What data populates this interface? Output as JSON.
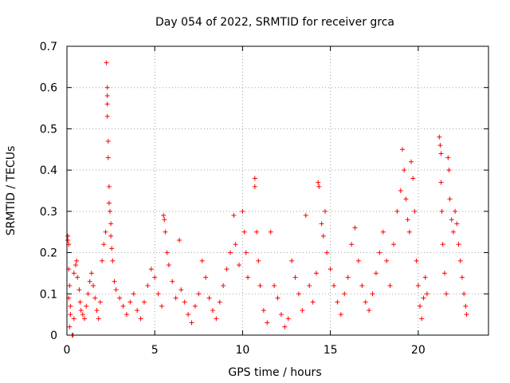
{
  "chart_data": {
    "type": "scatter",
    "title": "Day 054 of 2022, SRMTID for receiver grca",
    "xlabel": "GPS time / hours",
    "ylabel": "SRMTID / TECUs",
    "xlim": [
      0,
      24
    ],
    "ylim": [
      0,
      0.7
    ],
    "xticks": [
      0,
      5,
      10,
      15,
      20
    ],
    "xtick_labels": [
      "0",
      "5",
      "10",
      "15",
      "20"
    ],
    "yticks": [
      0,
      0.1,
      0.2,
      0.3,
      0.4,
      0.5,
      0.6,
      0.7
    ],
    "ytick_labels": [
      "0",
      "0.1",
      "0.2",
      "0.3",
      "0.4",
      "0.5",
      "0.6",
      "0.7"
    ],
    "grid": true,
    "marker": "+",
    "color": "#ff0000",
    "series": [
      {
        "name": "SRMTID",
        "points": [
          [
            0.05,
            0.24
          ],
          [
            0.05,
            0.23
          ],
          [
            0.1,
            0.22
          ],
          [
            0.1,
            0.16
          ],
          [
            0.15,
            0.12
          ],
          [
            0.1,
            0.09
          ],
          [
            0.2,
            0.07
          ],
          [
            0.2,
            0.05
          ],
          [
            0.15,
            0.02
          ],
          [
            0.3,
            0.0
          ],
          [
            0.35,
            0.0
          ],
          [
            0.4,
            0.04
          ],
          [
            0.4,
            0.15
          ],
          [
            0.5,
            0.17
          ],
          [
            0.55,
            0.18
          ],
          [
            0.6,
            0.14
          ],
          [
            0.7,
            0.11
          ],
          [
            0.75,
            0.08
          ],
          [
            0.8,
            0.06
          ],
          [
            0.9,
            0.05
          ],
          [
            1.0,
            0.04
          ],
          [
            1.1,
            0.07
          ],
          [
            1.2,
            0.1
          ],
          [
            1.3,
            0.13
          ],
          [
            1.4,
            0.15
          ],
          [
            1.5,
            0.12
          ],
          [
            1.6,
            0.09
          ],
          [
            1.7,
            0.06
          ],
          [
            1.8,
            0.04
          ],
          [
            1.9,
            0.08
          ],
          [
            2.0,
            0.18
          ],
          [
            2.1,
            0.22
          ],
          [
            2.2,
            0.25
          ],
          [
            2.25,
            0.66
          ],
          [
            2.3,
            0.6
          ],
          [
            2.3,
            0.58
          ],
          [
            2.3,
            0.56
          ],
          [
            2.3,
            0.53
          ],
          [
            2.35,
            0.47
          ],
          [
            2.35,
            0.43
          ],
          [
            2.4,
            0.36
          ],
          [
            2.4,
            0.32
          ],
          [
            2.45,
            0.3
          ],
          [
            2.5,
            0.27
          ],
          [
            2.5,
            0.24
          ],
          [
            2.55,
            0.21
          ],
          [
            2.6,
            0.18
          ],
          [
            2.7,
            0.13
          ],
          [
            2.8,
            0.11
          ],
          [
            3.0,
            0.09
          ],
          [
            3.2,
            0.07
          ],
          [
            3.4,
            0.05
          ],
          [
            3.6,
            0.08
          ],
          [
            3.8,
            0.1
          ],
          [
            4.0,
            0.06
          ],
          [
            4.2,
            0.04
          ],
          [
            4.4,
            0.08
          ],
          [
            4.6,
            0.12
          ],
          [
            4.8,
            0.16
          ],
          [
            5.0,
            0.14
          ],
          [
            5.2,
            0.1
          ],
          [
            5.4,
            0.07
          ],
          [
            5.5,
            0.29
          ],
          [
            5.55,
            0.28
          ],
          [
            5.6,
            0.25
          ],
          [
            5.7,
            0.2
          ],
          [
            5.8,
            0.17
          ],
          [
            6.0,
            0.13
          ],
          [
            6.2,
            0.09
          ],
          [
            6.4,
            0.23
          ],
          [
            6.5,
            0.11
          ],
          [
            6.7,
            0.08
          ],
          [
            6.9,
            0.05
          ],
          [
            7.1,
            0.03
          ],
          [
            7.3,
            0.07
          ],
          [
            7.5,
            0.1
          ],
          [
            7.7,
            0.18
          ],
          [
            7.9,
            0.14
          ],
          [
            8.1,
            0.09
          ],
          [
            8.3,
            0.06
          ],
          [
            8.5,
            0.04
          ],
          [
            8.7,
            0.08
          ],
          [
            8.9,
            0.12
          ],
          [
            9.1,
            0.16
          ],
          [
            9.3,
            0.2
          ],
          [
            9.5,
            0.29
          ],
          [
            9.6,
            0.22
          ],
          [
            9.8,
            0.17
          ],
          [
            10.0,
            0.3
          ],
          [
            10.1,
            0.25
          ],
          [
            10.2,
            0.2
          ],
          [
            10.3,
            0.14
          ],
          [
            10.7,
            0.38
          ],
          [
            10.7,
            0.36
          ],
          [
            10.8,
            0.25
          ],
          [
            10.9,
            0.18
          ],
          [
            11.0,
            0.12
          ],
          [
            11.2,
            0.06
          ],
          [
            11.4,
            0.03
          ],
          [
            11.6,
            0.25
          ],
          [
            11.8,
            0.12
          ],
          [
            12.0,
            0.09
          ],
          [
            12.2,
            0.05
          ],
          [
            12.4,
            0.02
          ],
          [
            12.6,
            0.04
          ],
          [
            12.8,
            0.18
          ],
          [
            13.0,
            0.14
          ],
          [
            13.2,
            0.1
          ],
          [
            13.4,
            0.06
          ],
          [
            13.6,
            0.29
          ],
          [
            13.8,
            0.12
          ],
          [
            14.0,
            0.08
          ],
          [
            14.2,
            0.15
          ],
          [
            14.3,
            0.37
          ],
          [
            14.35,
            0.36
          ],
          [
            14.5,
            0.27
          ],
          [
            14.6,
            0.24
          ],
          [
            14.7,
            0.3
          ],
          [
            14.8,
            0.2
          ],
          [
            15.0,
            0.16
          ],
          [
            15.2,
            0.12
          ],
          [
            15.4,
            0.08
          ],
          [
            15.6,
            0.05
          ],
          [
            15.8,
            0.1
          ],
          [
            16.0,
            0.14
          ],
          [
            16.2,
            0.22
          ],
          [
            16.4,
            0.26
          ],
          [
            16.6,
            0.18
          ],
          [
            16.8,
            0.12
          ],
          [
            17.0,
            0.08
          ],
          [
            17.2,
            0.06
          ],
          [
            17.4,
            0.1
          ],
          [
            17.6,
            0.15
          ],
          [
            17.8,
            0.2
          ],
          [
            18.0,
            0.25
          ],
          [
            18.2,
            0.18
          ],
          [
            18.4,
            0.12
          ],
          [
            18.6,
            0.22
          ],
          [
            18.8,
            0.3
          ],
          [
            19.0,
            0.35
          ],
          [
            19.1,
            0.45
          ],
          [
            19.2,
            0.4
          ],
          [
            19.3,
            0.33
          ],
          [
            19.4,
            0.28
          ],
          [
            19.5,
            0.25
          ],
          [
            19.6,
            0.42
          ],
          [
            19.7,
            0.38
          ],
          [
            19.8,
            0.3
          ],
          [
            19.9,
            0.18
          ],
          [
            20.0,
            0.12
          ],
          [
            20.1,
            0.07
          ],
          [
            20.2,
            0.04
          ],
          [
            20.3,
            0.09
          ],
          [
            20.4,
            0.14
          ],
          [
            20.5,
            0.1
          ],
          [
            21.2,
            0.48
          ],
          [
            21.25,
            0.46
          ],
          [
            21.3,
            0.44
          ],
          [
            21.3,
            0.37
          ],
          [
            21.35,
            0.3
          ],
          [
            21.4,
            0.22
          ],
          [
            21.5,
            0.15
          ],
          [
            21.6,
            0.1
          ],
          [
            21.7,
            0.43
          ],
          [
            21.75,
            0.4
          ],
          [
            21.8,
            0.33
          ],
          [
            21.9,
            0.28
          ],
          [
            22.0,
            0.25
          ],
          [
            22.1,
            0.3
          ],
          [
            22.2,
            0.27
          ],
          [
            22.3,
            0.22
          ],
          [
            22.4,
            0.18
          ],
          [
            22.5,
            0.14
          ],
          [
            22.6,
            0.1
          ],
          [
            22.7,
            0.07
          ],
          [
            22.75,
            0.05
          ]
        ]
      }
    ]
  }
}
